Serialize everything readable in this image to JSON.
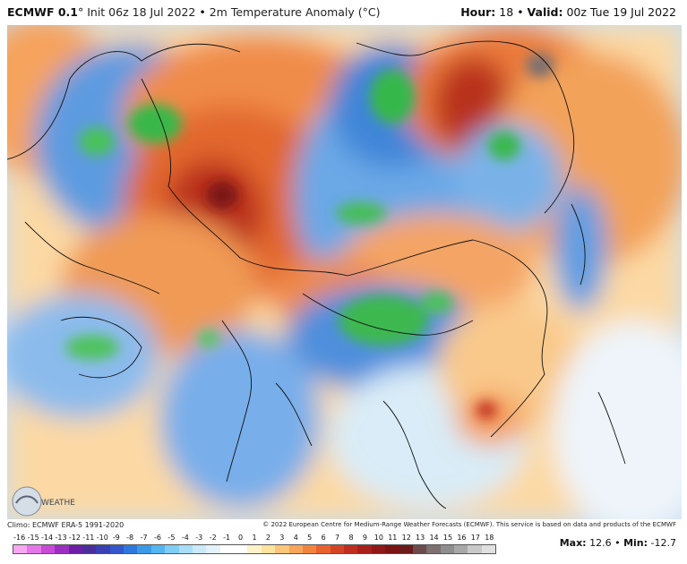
{
  "header": {
    "model": "ECMWF 0.1",
    "degree": "°",
    "init": "Init 06z 18 Jul 2022",
    "sep": "•",
    "field": "2m Temperature Anomaly (°C)",
    "hour_label": "Hour:",
    "hour_value": "18",
    "valid_label": "Valid:",
    "valid_value": "00z Tue 19 Jul 2022"
  },
  "footer": {
    "clim": "Climo: ECMWF ERA-5 1991-2020",
    "copyright": "© 2022 European Centre for Medium-Range Weather Forecasts (ECMWF). This service is based on data and products of the ECMWF",
    "max_label": "Max:",
    "max_value": "12.6",
    "min_label": "Min:",
    "min_value": "-12.7"
  },
  "logo": {
    "text": "WEATHERBELL"
  },
  "legend": {
    "ticks": [
      "-16",
      "-15",
      "-14",
      "-13",
      "-12",
      "-11",
      "-10",
      "-9",
      "-8",
      "-7",
      "-6",
      "-5",
      "-4",
      "-3",
      "-2",
      "-1",
      "0",
      "1",
      "2",
      "3",
      "4",
      "5",
      "6",
      "7",
      "8",
      "9",
      "10",
      "11",
      "12",
      "13",
      "14",
      "15",
      "16",
      "17",
      "18"
    ],
    "colors": [
      "#f7a7f2",
      "#e577e8",
      "#c84ad6",
      "#9b2fc2",
      "#6d1fa6",
      "#4b2d9c",
      "#3a3fb3",
      "#3356cc",
      "#2e78dd",
      "#3a9ae6",
      "#55b5ef",
      "#7fcdf5",
      "#a8def7",
      "#cbe9f8",
      "#e3f2fa",
      "#ffffff",
      "#ffffff",
      "#fff2c7",
      "#fde3a0",
      "#fbc67a",
      "#f7a55a",
      "#f2833f",
      "#e8622e",
      "#d54325",
      "#bf2e1f",
      "#a8201b",
      "#8f1717",
      "#7a1313",
      "#6a1a1a",
      "#6b4b4b",
      "#7c7070",
      "#8e8e8e",
      "#a8a8a8",
      "#c9c9c9",
      "#e0e0e0"
    ]
  },
  "map": {
    "ocean_color": "#c6def4",
    "border_color": "#111111",
    "features": [
      "temperature-anomaly-field",
      "country-borders",
      "coastlines"
    ]
  }
}
